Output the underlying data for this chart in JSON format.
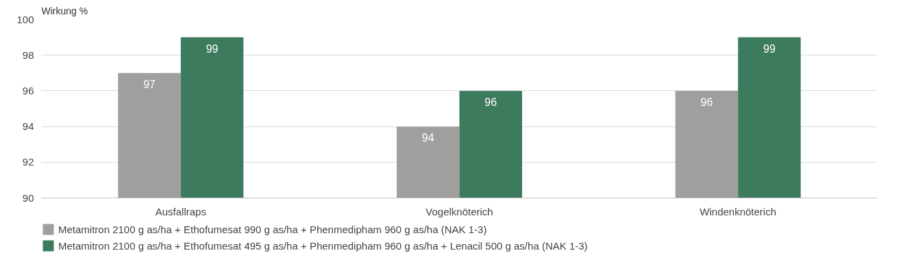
{
  "chart_data": {
    "type": "bar",
    "ylabel": "Wirkung %",
    "categories": [
      "Ausfallraps",
      "Vogelknöterich",
      "Windenknöterich"
    ],
    "series": [
      {
        "name": "Metamitron 2100 g as/ha + Ethofumesat 990 g as/ha + Phenmedipham 960 g as/ha (NAK 1-3)",
        "color": "#a09f9d",
        "values": [
          97,
          94,
          96
        ]
      },
      {
        "name": "Metamitron 2100 g as/ha + Ethofumesat 495 g as/ha + Phenmedipham 960 g as/ha + Lenacil 500 g as/ha (NAK 1-3)",
        "color": "#3d7b5e",
        "values": [
          99,
          96,
          99
        ]
      }
    ],
    "ylim": [
      90,
      100
    ],
    "yticks": [
      90,
      92,
      94,
      96,
      98,
      100
    ],
    "grid": "y",
    "data_labels": true,
    "legend": "bottom"
  }
}
